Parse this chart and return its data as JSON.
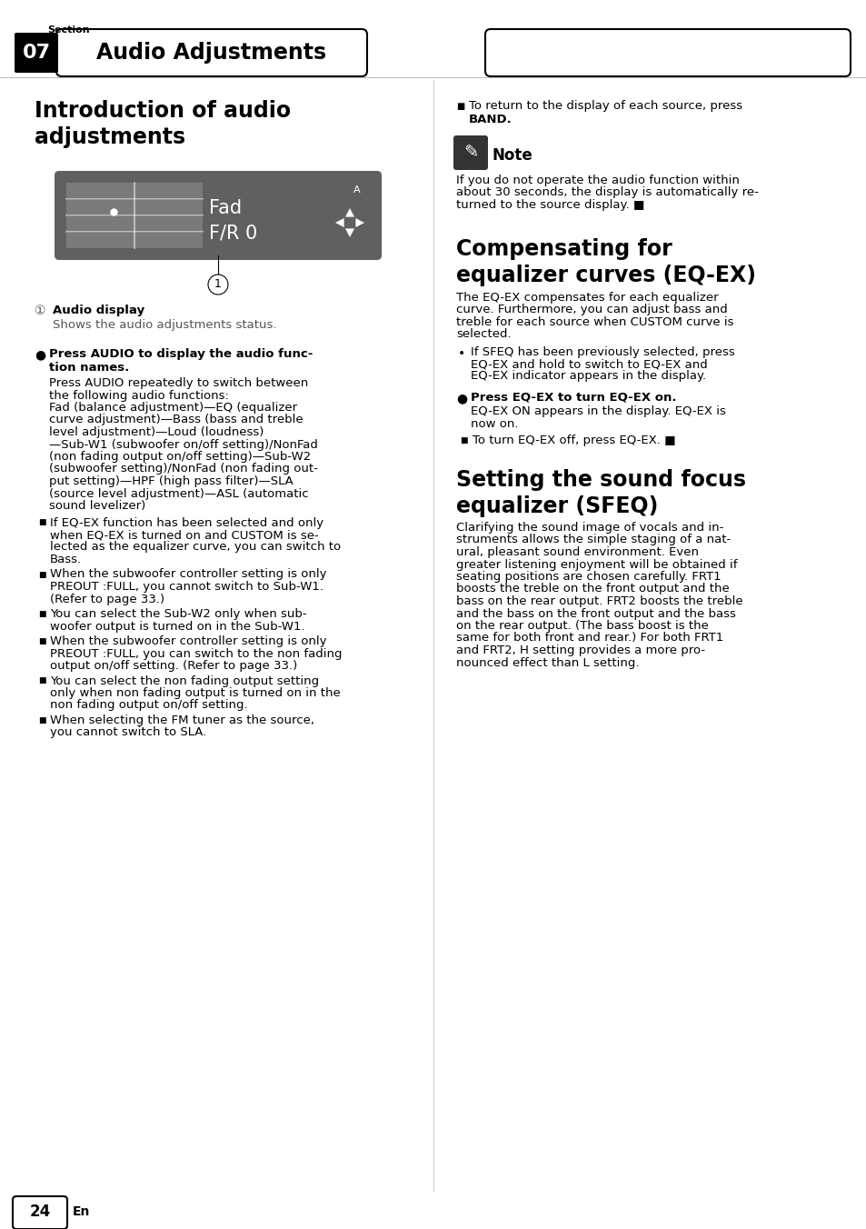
{
  "page_bg": "#ffffff",
  "header": {
    "section_label": "Section",
    "section_num": "07",
    "title": "Audio Adjustments"
  },
  "left": {
    "h1": "Introduction of audio\nadjustments",
    "callout_label": "1",
    "audio_display_bold": "Audio display",
    "audio_display_text": "Shows the audio adjustments status.",
    "bullet_head_line1": "Press AUDIO to display the audio func-",
    "bullet_head_line2": "tion names.",
    "body_lines": [
      "Press AUDIO repeatedly to switch between",
      "the following audio functions:",
      "Fad (balance adjustment)—EQ (equalizer",
      "curve adjustment)—Bass (bass and treble",
      "level adjustment)—Loud (loudness)",
      "—Sub-W1 (subwoofer on/off setting)/NonFad",
      "(non fading output on/off setting)—Sub-W2",
      "(subwoofer setting)/NonFad (non fading out-",
      "put setting)—HPF (high pass filter)—SLA",
      "(source level adjustment)—ASL (automatic",
      "sound levelizer)"
    ],
    "sq_bullets": [
      [
        "If EQ-EX function has been selected and only",
        "when EQ-EX is turned on and CUSTOM is se-",
        "lected as the equalizer curve, you can switch to",
        "Bass."
      ],
      [
        "When the subwoofer controller setting is only",
        "PREOUT :FULL, you cannot switch to Sub-W1.",
        "(Refer to page 33.)"
      ],
      [
        "You can select the Sub-W2 only when sub-",
        "woofer output is turned on in the Sub-W1."
      ],
      [
        "When the subwoofer controller setting is only",
        "PREOUT :FULL, you can switch to the non fading",
        "output on/off setting. (Refer to page 33.)"
      ],
      [
        "You can select the non fading output setting",
        "only when non fading output is turned on in the",
        "non fading output on/off setting."
      ],
      [
        "When selecting the FM tuner as the source,",
        "you cannot switch to SLA."
      ]
    ]
  },
  "right": {
    "return_line1": "To return to the display of each source, press",
    "return_bold": "BAND",
    "note_title": "Note",
    "note_lines": [
      "If you do not operate the audio function within",
      "about 30 seconds, the display is automatically re-",
      "turned to the source display. ■"
    ],
    "h2": "Compensating for\nequalizer curves (EQ-EX)",
    "eq_lines": [
      "The EQ-EX compensates for each equalizer",
      "curve. Furthermore, you can adjust bass and",
      "treble for each source when CUSTOM curve is",
      "selected."
    ],
    "sfeq_bullet_lines": [
      "If SFEQ has been previously selected, press",
      "EQ-EX and hold to switch to EQ-EX and",
      "EQ-EX indicator appears in the display."
    ],
    "eq_bullet2_head": "Press EQ-EX to turn EQ-EX on.",
    "eq_bullet2_lines": [
      "EQ-EX ON appears in the display. EQ-EX is",
      "now on."
    ],
    "eq_off_line": "To turn EQ-EX off, press EQ-EX. ■",
    "h3": "Setting the sound focus\nequalizer (SFEQ)",
    "sfeq_lines": [
      "Clarifying the sound image of vocals and in-",
      "struments allows the simple staging of a nat-",
      "ural, pleasant sound environment. Even",
      "greater listening enjoyment will be obtained if",
      "seating positions are chosen carefully. FRT1",
      "boosts the treble on the front output and the",
      "bass on the rear output. FRT2 boosts the treble",
      "and the bass on the front output and the bass",
      "on the rear output. (The bass boost is the",
      "same for both front and rear.) For both FRT1",
      "and FRT2, H setting provides a more pro-",
      "nounced effect than L setting."
    ]
  },
  "footer": {
    "page_num": "24",
    "lang": "En"
  }
}
